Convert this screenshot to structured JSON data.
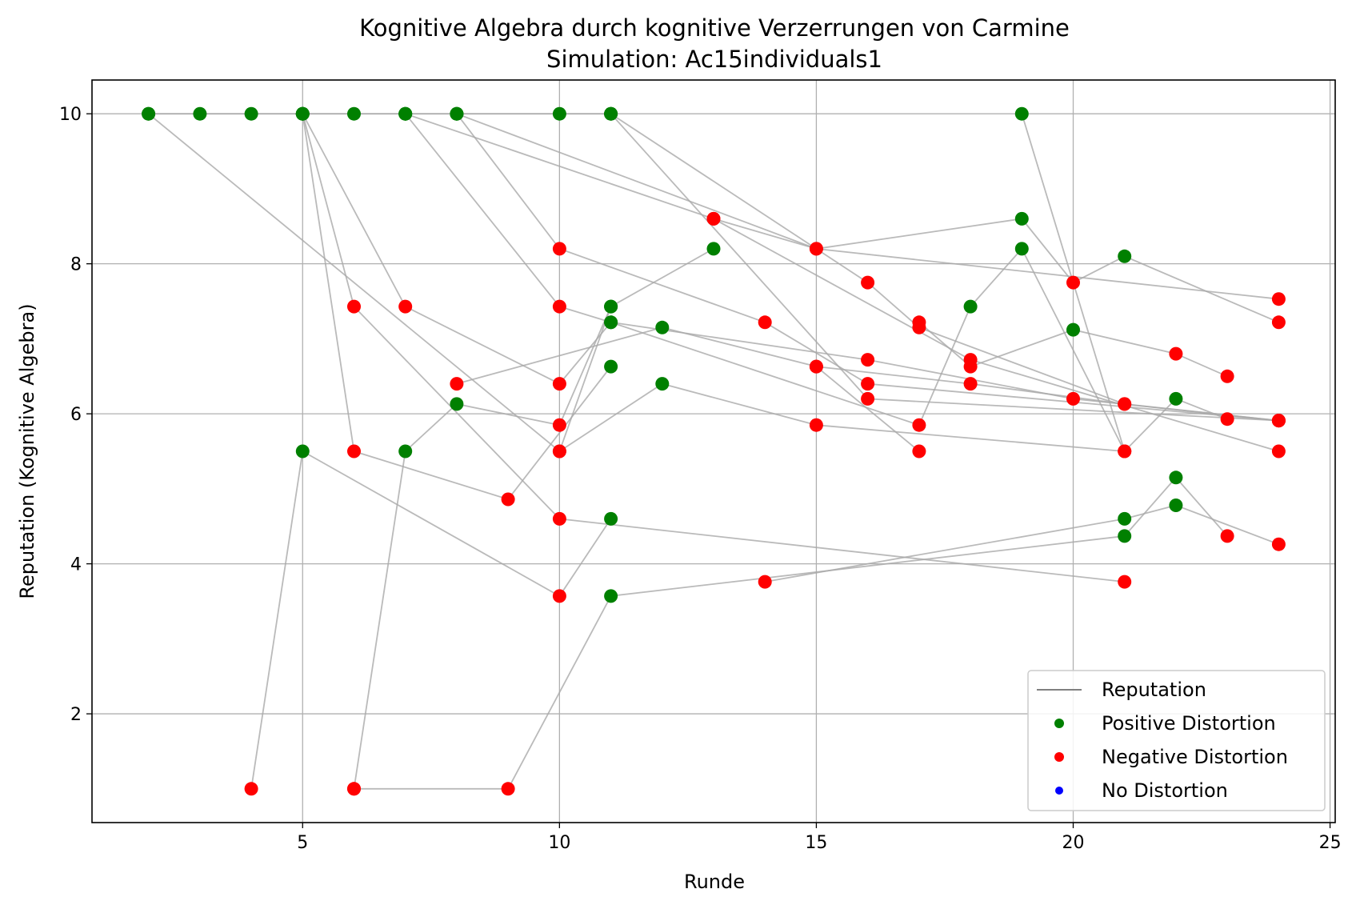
{
  "chart_data": {
    "type": "scatter",
    "title": "Kognitive Algebra durch kognitive Verzerrungen von Carmine",
    "subtitle": "Simulation: Ac15individuals1",
    "xlabel": "Runde",
    "ylabel": "Reputation (Kognitive Algebra)",
    "xlim": [
      0.9,
      25.1
    ],
    "ylim": [
      0.55,
      10.45
    ],
    "x_ticks": [
      5,
      10,
      15,
      20,
      25
    ],
    "y_ticks": [
      2,
      4,
      6,
      8,
      10
    ],
    "grid": true,
    "legend_position": "lower-right",
    "legend": [
      {
        "label": "Reputation",
        "kind": "line",
        "color": "#808080"
      },
      {
        "label": "Positive Distortion",
        "kind": "marker",
        "color": "#008000"
      },
      {
        "label": "Negative Distortion",
        "kind": "marker",
        "color": "#ff0000"
      },
      {
        "label": "No Distortion",
        "kind": "marker",
        "color": "#0000ff"
      }
    ],
    "colors": {
      "line": "#a9a9a9",
      "positive": "#008000",
      "negative": "#ff0000",
      "none": "#0000ff",
      "grid": "#b0b0b0"
    },
    "series": [
      {
        "points": [
          [
            2,
            10,
            "pos"
          ],
          [
            3,
            10,
            "pos"
          ],
          [
            4,
            10,
            "pos"
          ],
          [
            5,
            10,
            "pos"
          ],
          [
            6,
            10,
            "pos"
          ],
          [
            7,
            10,
            "pos"
          ],
          [
            8,
            10,
            "pos"
          ],
          [
            10,
            10,
            "pos"
          ],
          [
            11,
            10,
            "pos"
          ]
        ]
      },
      {
        "points": [
          [
            2,
            10,
            "pos"
          ],
          [
            10,
            5.5,
            "neg"
          ],
          [
            11,
            7.43,
            "pos"
          ],
          [
            13,
            8.2,
            "pos"
          ]
        ]
      },
      {
        "points": [
          [
            5,
            10,
            "pos"
          ],
          [
            6,
            7.43,
            "neg"
          ],
          [
            10,
            4.6,
            "neg"
          ],
          [
            21,
            3.76,
            "neg"
          ]
        ]
      },
      {
        "points": [
          [
            5,
            10,
            "pos"
          ],
          [
            7,
            7.43,
            "neg"
          ],
          [
            10,
            6.4,
            "neg"
          ],
          [
            11,
            7.22,
            "pos"
          ],
          [
            17,
            5.85,
            "neg"
          ],
          [
            18,
            7.43,
            "pos"
          ],
          [
            19,
            8.2,
            "pos"
          ],
          [
            21,
            5.5,
            "neg"
          ],
          [
            22,
            6.2,
            "pos"
          ],
          [
            23,
            5.93,
            "neg"
          ]
        ]
      },
      {
        "points": [
          [
            5,
            10,
            "pos"
          ],
          [
            6,
            5.5,
            "neg"
          ],
          [
            9,
            4.86,
            "neg"
          ],
          [
            11,
            6.63,
            "pos"
          ]
        ]
      },
      {
        "points": [
          [
            7,
            10,
            "pos"
          ],
          [
            10,
            7.43,
            "neg"
          ],
          [
            11,
            7.22,
            "pos"
          ],
          [
            16,
            6.72,
            "neg"
          ],
          [
            20,
            6.2,
            "neg"
          ],
          [
            24,
            5.91,
            "neg"
          ]
        ]
      },
      {
        "points": [
          [
            7,
            10,
            "pos"
          ],
          [
            13,
            8.6,
            "neg"
          ],
          [
            15,
            8.2,
            "neg"
          ],
          [
            19,
            8.6,
            "pos"
          ],
          [
            20,
            7.75,
            "neg"
          ],
          [
            21,
            8.1,
            "pos"
          ],
          [
            24,
            7.22,
            "neg"
          ]
        ]
      },
      {
        "points": [
          [
            8,
            10,
            "pos"
          ],
          [
            10,
            8.2,
            "neg"
          ],
          [
            14,
            7.22,
            "neg"
          ],
          [
            16,
            6.4,
            "neg"
          ],
          [
            24,
            5.91,
            "neg"
          ]
        ]
      },
      {
        "points": [
          [
            8,
            10,
            "pos"
          ],
          [
            15,
            8.2,
            "neg"
          ],
          [
            24,
            7.53,
            "neg"
          ]
        ]
      },
      {
        "points": [
          [
            11,
            10,
            "pos"
          ],
          [
            16,
            7.75,
            "neg"
          ],
          [
            17,
            7.15,
            "neg"
          ],
          [
            21,
            6.13,
            "neg"
          ],
          [
            24,
            5.91,
            "neg"
          ]
        ]
      },
      {
        "points": [
          [
            11,
            10,
            "pos"
          ],
          [
            16,
            6.2,
            "neg"
          ],
          [
            24,
            5.91,
            "neg"
          ]
        ]
      },
      {
        "points": [
          [
            4,
            1,
            "neg"
          ],
          [
            5,
            5.5,
            "pos"
          ],
          [
            10,
            3.57,
            "neg"
          ],
          [
            11,
            4.6,
            "pos"
          ]
        ]
      },
      {
        "points": [
          [
            6,
            1,
            "neg"
          ],
          [
            7,
            5.5,
            "pos"
          ],
          [
            8,
            6.13,
            "pos"
          ],
          [
            10,
            5.85,
            "neg"
          ],
          [
            11,
            7.43,
            "pos"
          ]
        ]
      },
      {
        "points": [
          [
            6,
            1,
            "neg"
          ],
          [
            9,
            1,
            "neg"
          ],
          [
            11,
            3.57,
            "pos"
          ],
          [
            21,
            4.37,
            "pos"
          ],
          [
            22,
            5.15,
            "pos"
          ],
          [
            23,
            4.37,
            "neg"
          ]
        ]
      },
      {
        "points": [
          [
            8,
            6.4,
            "neg"
          ],
          [
            12,
            7.15,
            "pos"
          ],
          [
            15,
            6.63,
            "neg"
          ],
          [
            17,
            5.5,
            "neg"
          ]
        ]
      },
      {
        "points": [
          [
            10,
            5.5,
            "neg"
          ],
          [
            12,
            6.4,
            "pos"
          ],
          [
            15,
            5.85,
            "neg"
          ],
          [
            21,
            5.5,
            "neg"
          ]
        ]
      },
      {
        "points": [
          [
            14,
            3.76,
            "neg"
          ],
          [
            21,
            4.6,
            "pos"
          ],
          [
            22,
            4.78,
            "pos"
          ],
          [
            24,
            4.26,
            "neg"
          ]
        ]
      },
      {
        "points": [
          [
            17,
            7.22,
            "neg"
          ],
          [
            18,
            6.63,
            "neg"
          ],
          [
            20,
            7.12,
            "pos"
          ],
          [
            22,
            6.8,
            "neg"
          ],
          [
            23,
            6.5,
            "neg"
          ]
        ]
      },
      {
        "points": [
          [
            19,
            10,
            "pos"
          ],
          [
            21,
            5.5,
            "neg"
          ]
        ]
      },
      {
        "points": [
          [
            13,
            8.6,
            "neg"
          ],
          [
            18,
            6.72,
            "neg"
          ],
          [
            24,
            5.5,
            "neg"
          ]
        ]
      },
      {
        "points": [
          [
            15,
            6.63,
            "neg"
          ],
          [
            18,
            6.4,
            "neg"
          ],
          [
            21,
            6.13,
            "neg"
          ]
        ]
      }
    ]
  }
}
